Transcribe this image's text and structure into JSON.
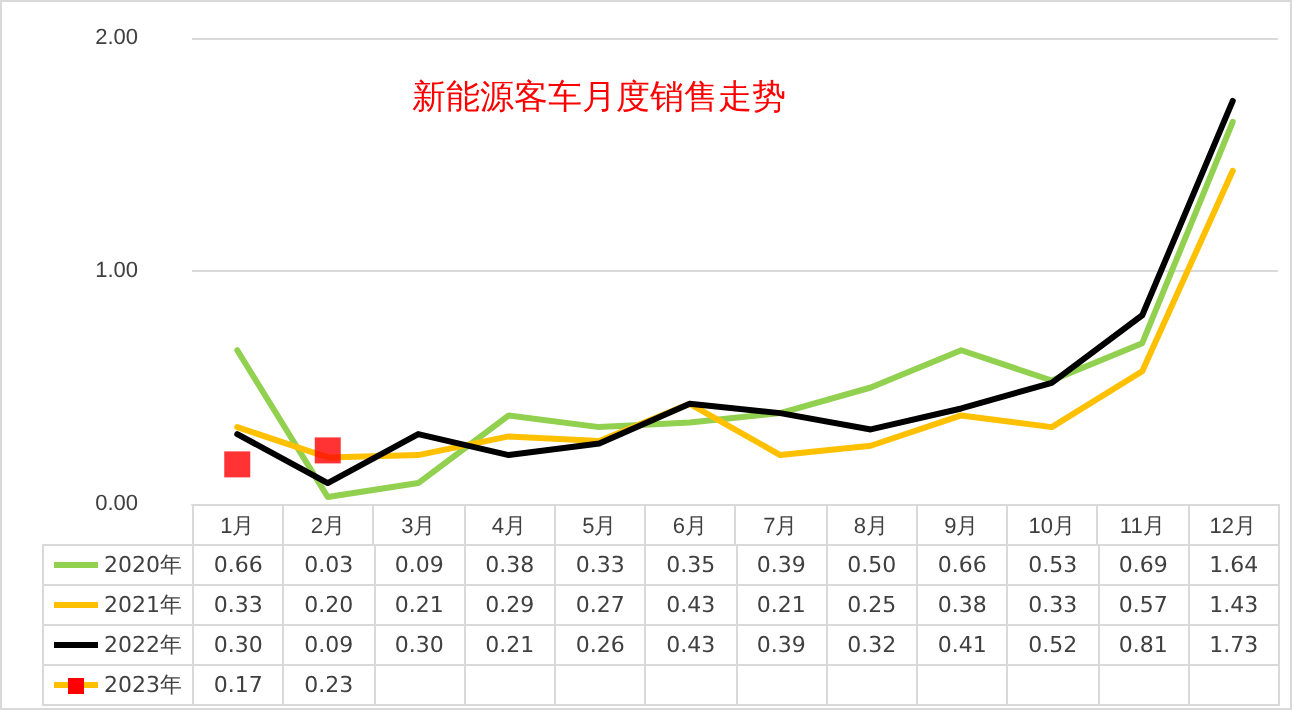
{
  "chart_data": {
    "type": "line",
    "title": "新能源客车月度销售走势",
    "categories": [
      "1月",
      "2月",
      "3月",
      "4月",
      "5月",
      "6月",
      "7月",
      "8月",
      "9月",
      "10月",
      "11月",
      "12月"
    ],
    "series": [
      {
        "name": "2020年",
        "color": "#92d050",
        "values": [
          0.66,
          0.03,
          0.09,
          0.38,
          0.33,
          0.35,
          0.39,
          0.5,
          0.66,
          0.53,
          0.69,
          1.64
        ],
        "value_labels": [
          "0.66",
          "0.03",
          "0.09",
          "0.38",
          "0.33",
          "0.35",
          "0.39",
          "0.50",
          "0.66",
          "0.53",
          "0.69",
          "1.64"
        ]
      },
      {
        "name": "2021年",
        "color": "#ffc000",
        "values": [
          0.33,
          0.2,
          0.21,
          0.29,
          0.27,
          0.43,
          0.21,
          0.25,
          0.38,
          0.33,
          0.57,
          1.43
        ],
        "value_labels": [
          "0.33",
          "0.20",
          "0.21",
          "0.29",
          "0.27",
          "0.43",
          "0.21",
          "0.25",
          "0.38",
          "0.33",
          "0.57",
          "1.43"
        ]
      },
      {
        "name": "2022年",
        "color": "#000000",
        "values": [
          0.3,
          0.09,
          0.3,
          0.21,
          0.26,
          0.43,
          0.39,
          0.32,
          0.41,
          0.52,
          0.81,
          1.73
        ],
        "value_labels": [
          "0.30",
          "0.09",
          "0.30",
          "0.21",
          "0.26",
          "0.43",
          "0.39",
          "0.32",
          "0.41",
          "0.52",
          "0.81",
          "1.73"
        ]
      },
      {
        "name": "2023年",
        "color": "#ff0000",
        "type": "scatter",
        "marker": "square",
        "values": [
          0.17,
          0.23,
          null,
          null,
          null,
          null,
          null,
          null,
          null,
          null,
          null,
          null
        ],
        "value_labels": [
          "0.17",
          "0.23",
          null,
          null,
          null,
          null,
          null,
          null,
          null,
          null,
          null,
          null
        ]
      }
    ],
    "ylim": [
      0,
      2
    ],
    "yticks": [
      {
        "value": 0,
        "label": "0.00"
      },
      {
        "value": 1,
        "label": "1.00"
      },
      {
        "value": 2,
        "label": "2.00"
      }
    ],
    "grid": "y",
    "marker": "none",
    "legend": "bottom"
  }
}
